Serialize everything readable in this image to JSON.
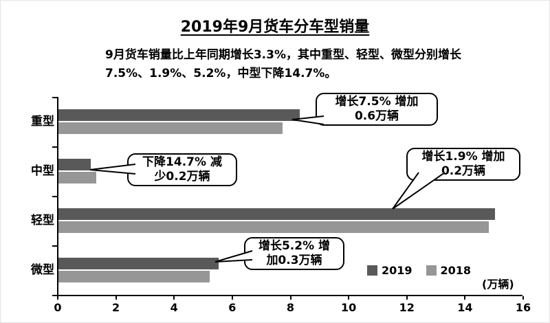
{
  "title": "2019年9月货车分车型销量",
  "subtitle_line1": "9月货车销量比上年同期增长3.3%，其中重型、轻型、微型分别增长",
  "subtitle_line2": "7.5%、1.9%、5.2%，中型下降14.7%。",
  "unit_label": "(万辆)",
  "legend": [
    {
      "label": "2019",
      "color": "#595959"
    },
    {
      "label": "2018",
      "color": "#969696"
    }
  ],
  "chart_data": {
    "type": "bar",
    "orientation": "horizontal",
    "title": "2019年9月货车分车型销量",
    "categories": [
      "重型",
      "中型",
      "轻型",
      "微型"
    ],
    "series": [
      {
        "name": "2019",
        "color": "#595959",
        "values": [
          8.3,
          1.1,
          15.0,
          5.5
        ]
      },
      {
        "name": "2018",
        "color": "#969696",
        "values": [
          7.7,
          1.3,
          14.8,
          5.2
        ]
      }
    ],
    "xlim": [
      0,
      16
    ],
    "xticks": [
      0,
      2,
      4,
      6,
      8,
      10,
      12,
      14,
      16
    ],
    "x_unit": "万辆",
    "legend_position": "bottom-right",
    "annotations": [
      {
        "category": "重型",
        "text_line1": "增长7.5% 增加",
        "text_line2": "0.6万辆"
      },
      {
        "category": "中型",
        "text_line1": "下降14.7% 减",
        "text_line2": "少0.2万辆"
      },
      {
        "category": "轻型",
        "text_line1": "增长1.9% 增加",
        "text_line2": "0.2万辆"
      },
      {
        "category": "微型",
        "text_line1": "增长5.2% 增",
        "text_line2": "加0.3万辆"
      }
    ]
  }
}
